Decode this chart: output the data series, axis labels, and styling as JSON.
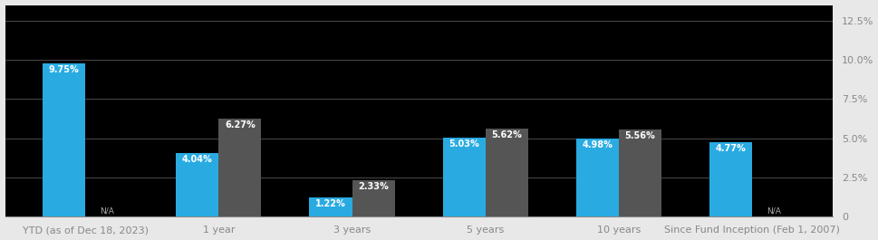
{
  "categories": [
    "YTD (as of Dec 18, 2023)",
    "1 year",
    "3 years",
    "5 years",
    "10 years",
    "Since Fund Inception (Feb 1, 2007)"
  ],
  "blue_values": [
    9.75,
    4.04,
    1.22,
    5.03,
    4.98,
    4.77
  ],
  "gray_values": [
    0,
    6.27,
    2.33,
    5.62,
    5.56,
    0
  ],
  "blue_labels": [
    "9.75%",
    "4.04%",
    "1.22%",
    "5.03%",
    "4.98%",
    "4.77%"
  ],
  "gray_labels": [
    "N/A",
    "6.27%",
    "2.33%",
    "5.62%",
    "5.56%",
    "N/A"
  ],
  "gray_na": [
    true,
    false,
    false,
    false,
    false,
    true
  ],
  "blue_color": "#29ABE2",
  "gray_color": "#555555",
  "plot_bg_color": "#000000",
  "fig_bg_color": "#e8e8e8",
  "plot_text_color": "#ffffff",
  "axis_text_color": "#888888",
  "ytick_labels": [
    "0",
    "2.5%",
    "5.0%",
    "7.5%",
    "10.0%",
    "12.5%"
  ],
  "ytick_values": [
    0,
    2.5,
    5.0,
    7.5,
    10.0,
    12.5
  ],
  "ylim": [
    0,
    13.5
  ],
  "bar_width": 0.32,
  "grid_color": "#444444",
  "label_fontsize": 7.0,
  "tick_fontsize": 8.0
}
